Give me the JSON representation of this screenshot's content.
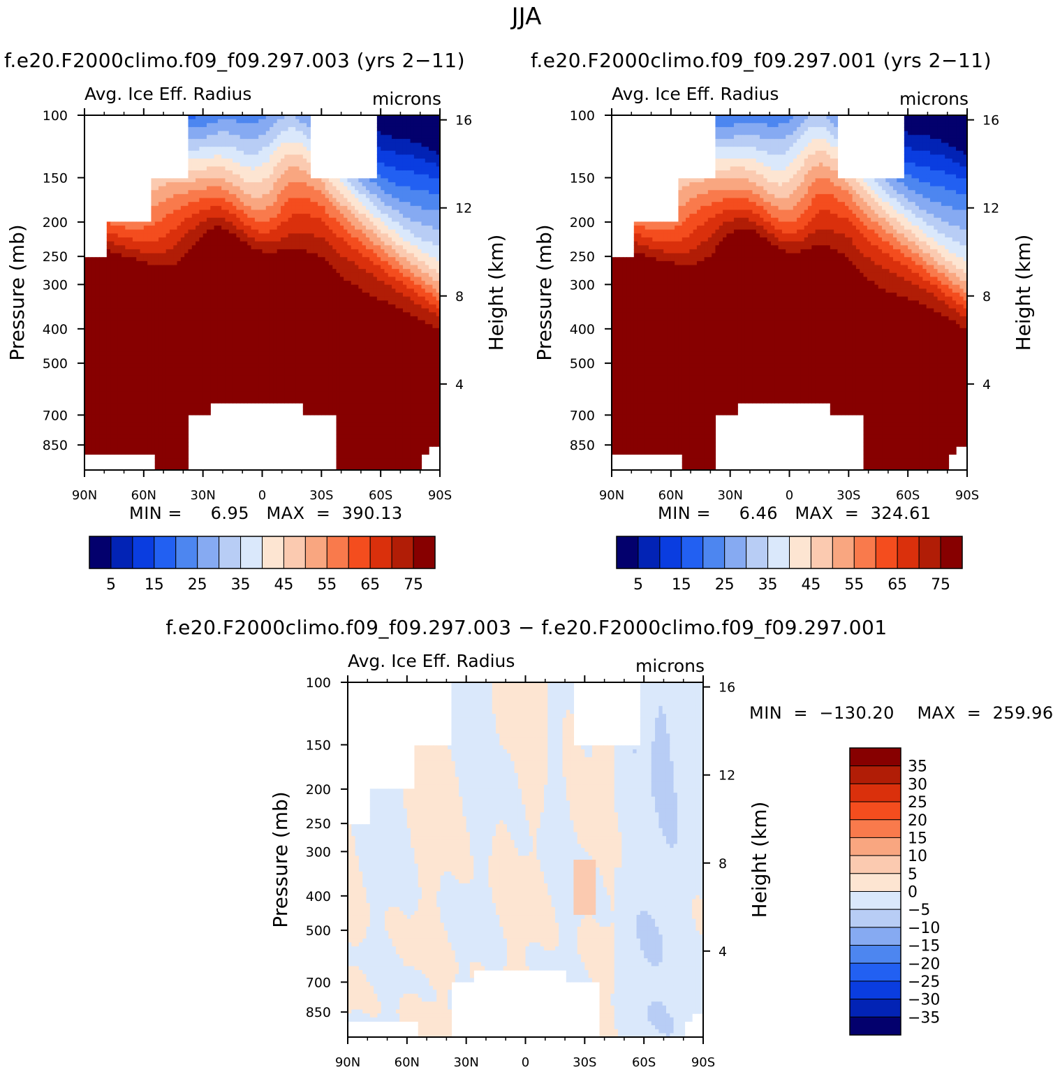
{
  "page_title": "JJA",
  "panels": [
    {
      "title": "f.e20.F2000climo.f09_f09.297.003 (yrs 2−11)",
      "left_label": "Avg. Ice Eff. Radius",
      "right_label": "microns",
      "min_max": "MIN =     6.95   MAX  =  390.13"
    },
    {
      "title": "f.e20.F2000climo.f09_f09.297.001 (yrs 2−11)",
      "left_label": "Avg. Ice Eff. Radius",
      "right_label": "microns",
      "min_max": "MIN =     6.46   MAX  =  324.61"
    },
    {
      "title": "f.e20.F2000climo.f09_f09.297.003 − f.e20.F2000climo.f09_f09.297.001",
      "left_label": "Avg. Ice Eff. Radius",
      "right_label": "microns",
      "min_max": "MIN  =  −130.20    MAX  =  259.96"
    }
  ],
  "chart_data": [
    {
      "type": "heatmap",
      "ylabel": "Pressure (mb)",
      "y2label": "Height (km)",
      "x_ticks": [
        "90N",
        "60N",
        "30N",
        "0",
        "30S",
        "60S",
        "90S"
      ],
      "y_ticks": [
        "100",
        "150",
        "200",
        "250",
        "300",
        "400",
        "500",
        "700",
        "850"
      ],
      "y2_ticks": [
        "16",
        "12",
        "8",
        "4"
      ],
      "colorbar_labels": [
        "5",
        "15",
        "25",
        "35",
        "45",
        "55",
        "65",
        "75"
      ],
      "colorbar_colors": [
        "#03006d",
        "#0223b5",
        "#0a3de0",
        "#2260f2",
        "#4d86f0",
        "#86aaf2",
        "#b8cdf5",
        "#dae8fb",
        "#fde5d2",
        "#fbcab0",
        "#f9a680",
        "#f97a4c",
        "#f44d1e",
        "#da300c",
        "#b11d06",
        "#870000"
      ],
      "data_range": {
        "min": 6.95,
        "max": 390.13
      }
    },
    {
      "type": "heatmap",
      "ylabel": "Pressure (mb)",
      "y2label": "Height (km)",
      "x_ticks": [
        "90N",
        "60N",
        "30N",
        "0",
        "30S",
        "60S",
        "90S"
      ],
      "y_ticks": [
        "100",
        "150",
        "200",
        "250",
        "300",
        "400",
        "500",
        "700",
        "850"
      ],
      "y2_ticks": [
        "16",
        "12",
        "8",
        "4"
      ],
      "colorbar_labels": [
        "5",
        "15",
        "25",
        "35",
        "45",
        "55",
        "65",
        "75"
      ],
      "colorbar_colors": [
        "#03006d",
        "#0223b5",
        "#0a3de0",
        "#2260f2",
        "#4d86f0",
        "#86aaf2",
        "#b8cdf5",
        "#dae8fb",
        "#fde5d2",
        "#fbcab0",
        "#f9a680",
        "#f97a4c",
        "#f44d1e",
        "#da300c",
        "#b11d06",
        "#870000"
      ],
      "data_range": {
        "min": 6.46,
        "max": 324.61
      }
    },
    {
      "type": "heatmap",
      "ylabel": "Pressure (mb)",
      "y2label": "Height (km)",
      "x_ticks": [
        "90N",
        "60N",
        "30N",
        "0",
        "30S",
        "60S",
        "90S"
      ],
      "y_ticks": [
        "100",
        "150",
        "200",
        "250",
        "300",
        "400",
        "500",
        "700",
        "850"
      ],
      "y2_ticks": [
        "16",
        "12",
        "8",
        "4"
      ],
      "colorbar_labels": [
        "35",
        "30",
        "25",
        "20",
        "15",
        "10",
        "5",
        "0",
        "−5",
        "−10",
        "−15",
        "−20",
        "−25",
        "−30",
        "−35"
      ],
      "colorbar_colors": [
        "#870000",
        "#b11d06",
        "#da300c",
        "#f44d1e",
        "#f97a4c",
        "#f9a680",
        "#fbcab0",
        "#fde5d2",
        "#dae8fb",
        "#b8cdf5",
        "#86aaf2",
        "#4d86f0",
        "#2260f2",
        "#0a3de0",
        "#0223b5",
        "#03006d"
      ],
      "data_range": {
        "min": -130.2,
        "max": 259.96
      }
    }
  ]
}
